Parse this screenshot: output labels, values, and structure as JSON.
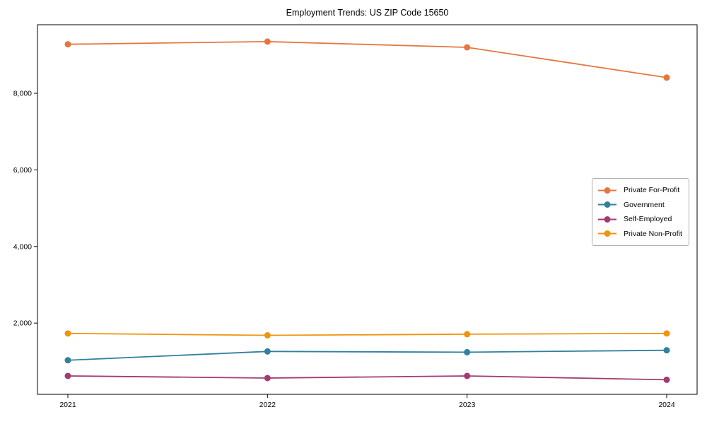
{
  "chart_data": {
    "type": "line",
    "title": "Employment Trends: US ZIP Code 15650",
    "xlabel": "",
    "ylabel": "",
    "x": [
      2021,
      2022,
      2023,
      2024
    ],
    "series": [
      {
        "name": "Private For-Profit",
        "color": "#E5763E",
        "values": [
          9280,
          9350,
          9200,
          8410
        ]
      },
      {
        "name": "Government",
        "color": "#30809F",
        "values": [
          1030,
          1260,
          1240,
          1290
        ]
      },
      {
        "name": "Self-Employed",
        "color": "#A23B72",
        "values": [
          620,
          565,
          620,
          520
        ]
      },
      {
        "name": "Private Non-Profit",
        "color": "#F0930D",
        "values": [
          1730,
          1680,
          1710,
          1730
        ]
      }
    ],
    "yticks": [
      2000,
      4000,
      6000,
      8000
    ],
    "ytick_labels": [
      "2,000",
      "4,000",
      "6,000",
      "8,000"
    ],
    "ylim": [
      140,
      9790
    ],
    "grid": false,
    "legend_position": "center right",
    "marker": "circle",
    "axis_color": "#000000"
  }
}
